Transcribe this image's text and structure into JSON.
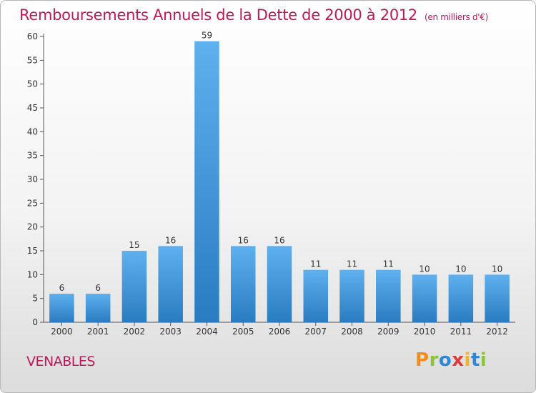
{
  "chart_data": {
    "type": "bar",
    "title": "Remboursements Annuels de la Dette de 2000 à 2012",
    "unit_note": "(en milliers d'€)",
    "categories": [
      "2000",
      "2001",
      "2002",
      "2003",
      "2004",
      "2005",
      "2006",
      "2007",
      "2008",
      "2009",
      "2010",
      "2011",
      "2012"
    ],
    "values": [
      6,
      6,
      15,
      16,
      59,
      16,
      16,
      11,
      11,
      11,
      10,
      10,
      10
    ],
    "ylim": [
      0,
      60
    ],
    "yticks": [
      0,
      5,
      10,
      15,
      20,
      25,
      30,
      35,
      40,
      45,
      50,
      55,
      60
    ],
    "grid": false,
    "bar_color": "#3a92d6"
  },
  "place": "VENABLES",
  "logo": {
    "text": "Proxiti",
    "letters": [
      {
        "ch": "P",
        "color": "#f28c1b"
      },
      {
        "ch": "r",
        "color": "#8cc43c"
      },
      {
        "ch": "o",
        "color": "#2f87d6"
      },
      {
        "ch": "x",
        "color": "#e23a3a"
      },
      {
        "ch": "i",
        "color": "#f5b323"
      },
      {
        "ch": "t",
        "color": "#2f87d6"
      },
      {
        "ch": "i",
        "color": "#8cc43c"
      }
    ]
  }
}
